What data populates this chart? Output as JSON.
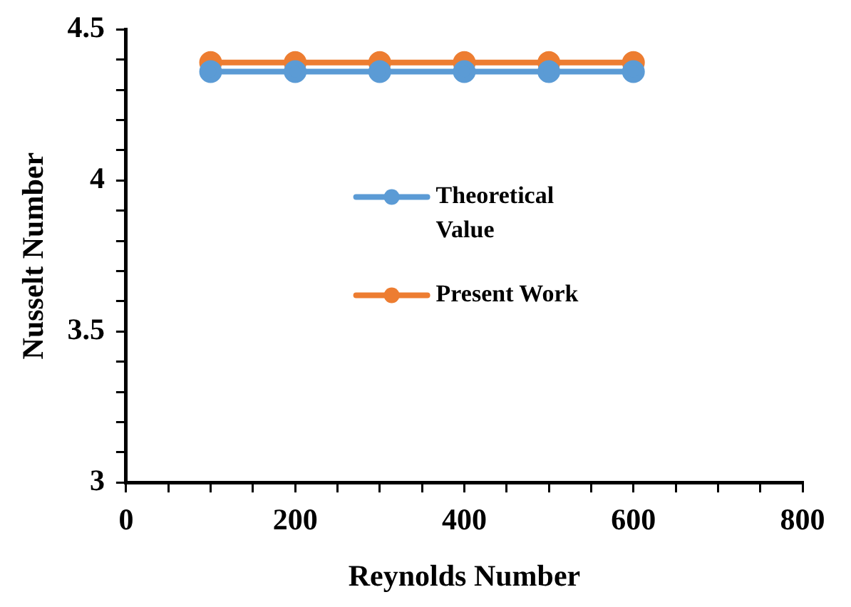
{
  "chart_data": {
    "type": "line",
    "xlabel": "Reynolds Number",
    "ylabel": "Nusselt Number",
    "x": [
      100,
      200,
      300,
      400,
      500,
      600
    ],
    "series": [
      {
        "name": "Theoretical Value",
        "color": "#5b9bd5",
        "values": [
          4.36,
          4.36,
          4.36,
          4.36,
          4.36,
          4.36
        ]
      },
      {
        "name": "Present Work",
        "color": "#ed7d31",
        "values": [
          4.39,
          4.39,
          4.39,
          4.39,
          4.39,
          4.39
        ]
      }
    ],
    "xlim": [
      0,
      800
    ],
    "xticks": [
      0,
      {
        "value": 50,
        "label": null
      },
      {
        "value": 100,
        "label": null
      },
      {
        "value": 150,
        "label": null
      },
      200,
      {
        "value": 250,
        "label": null
      },
      {
        "value": 300,
        "label": null
      },
      {
        "value": 350,
        "label": null
      },
      400,
      {
        "value": 450,
        "label": null
      },
      {
        "value": 500,
        "label": null
      },
      {
        "value": 550,
        "label": null
      },
      600,
      {
        "value": 650,
        "label": null
      },
      {
        "value": 700,
        "label": null
      },
      {
        "value": 750,
        "label": null
      },
      800
    ],
    "ylim": [
      3,
      4.5
    ],
    "yticks": [
      3,
      {
        "value": 3.1,
        "label": null
      },
      {
        "value": 3.2,
        "label": null
      },
      {
        "value": 3.3,
        "label": null
      },
      {
        "value": 3.4,
        "label": null
      },
      3.5,
      {
        "value": 3.6,
        "label": null
      },
      {
        "value": 3.7,
        "label": null
      },
      {
        "value": 3.8,
        "label": null
      },
      {
        "value": 3.9,
        "label": null
      },
      4,
      {
        "value": 4.1,
        "label": null
      },
      {
        "value": 4.2,
        "label": null
      },
      {
        "value": 4.3,
        "label": null
      },
      {
        "value": 4.4,
        "label": null
      },
      4.5
    ],
    "grid": false,
    "legend": "center",
    "marker": "circle",
    "line_style": "solid"
  }
}
